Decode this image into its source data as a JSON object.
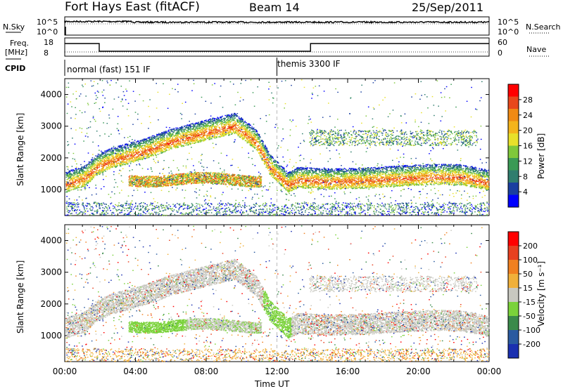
{
  "header": {
    "station": "Fort Hays East (fitACF)",
    "beam": "Beam 14",
    "date": "25/Sep/2011"
  },
  "top_panels": {
    "nsky_label": "N.Sky",
    "nsky_ticks": [
      "10^5",
      "10^0"
    ],
    "nsearch_label": "N.Search",
    "nsearch_ticks": [
      "10^5",
      "10^0"
    ],
    "freq_label": "Freq.",
    "freq_unit": "[MHz]",
    "freq_ticks": [
      "18",
      "8"
    ],
    "nave_label": "Nave",
    "nave_ticks": [
      "60",
      "0"
    ],
    "cpid_label": "CPID",
    "cpid_modes": [
      "normal (fast) 151 IF",
      "themis 3300 IF"
    ]
  },
  "chart_data": [
    {
      "type": "heatmap",
      "name": "power",
      "ylabel": "Slant Range [km]",
      "yticks": [
        "4000",
        "3000",
        "2000",
        "1000"
      ],
      "ylim": [
        180,
        4500
      ],
      "xlim": [
        0,
        24
      ],
      "colorbar_label": "Power [dB]",
      "colorbar_ticks": [
        "28",
        "24",
        "20",
        "16",
        "12",
        "8",
        "4"
      ],
      "colors": [
        "#0000ff",
        "#1a3fa0",
        "#2f7d6e",
        "#3a9a55",
        "#7fc83a",
        "#e8e02a",
        "#f4b41c",
        "#f08a14",
        "#e8481c",
        "#ff0000"
      ],
      "bands": [
        {
          "t": [
            0,
            1.1,
            1.8,
            2.6,
            4.2,
            6.0,
            8.0,
            9.6,
            10.8,
            11.6,
            12.6,
            13.2
          ],
          "r": [
            1150,
            1350,
            1700,
            1900,
            2150,
            2500,
            2800,
            3000,
            2500,
            1700,
            1150,
            1300
          ]
        },
        {
          "t": [
            13.2,
            15,
            17,
            19,
            21,
            22.5,
            24
          ],
          "r": [
            1300,
            1250,
            1280,
            1350,
            1400,
            1380,
            1200
          ]
        }
      ]
    },
    {
      "type": "heatmap",
      "name": "velocity",
      "ylabel": "Slant Range [km]",
      "yticks": [
        "4000",
        "3000",
        "2000",
        "1000"
      ],
      "ylim": [
        180,
        4500
      ],
      "xlim": [
        0,
        24
      ],
      "xticks": [
        "00:00",
        "04:00",
        "08:00",
        "12:00",
        "16:00",
        "20:00",
        "00:00"
      ],
      "xlabel": "Time UT",
      "colorbar_label": "Velocity [m s⁻¹]",
      "colorbar_ticks": [
        "200",
        "100",
        "50",
        "15",
        "-15",
        "-50",
        "-100",
        "-200"
      ],
      "colors": [
        "#1a2fb0",
        "#2a5aa0",
        "#3a8a4a",
        "#7ad23a",
        "#c8c8c0",
        "#f0b03a",
        "#f08020",
        "#e84020",
        "#ff0000"
      ]
    }
  ],
  "cpid_change_hour": 12.0,
  "freq_step_hours": [
    0,
    1.95,
    13.9,
    24
  ]
}
